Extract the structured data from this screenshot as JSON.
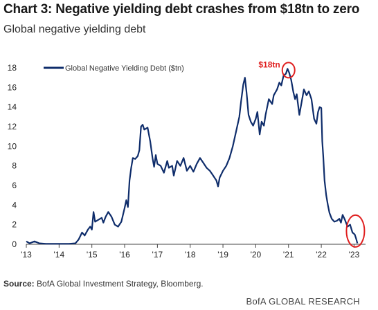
{
  "header": {
    "title": "Chart 3: Negative yielding debt crashes from $18tn to zero",
    "subtitle": "Global negative yielding debt"
  },
  "footer": {
    "source_label": "Source:",
    "source_text": " BofA Global Investment Strategy, Bloomberg.",
    "brand": "BofA GLOBAL RESEARCH"
  },
  "colors": {
    "series": "#0f2d6b",
    "highlight": "#e02020",
    "axis": "#444444"
  },
  "chart_data": {
    "type": "line",
    "title": "Chart 3: Negative yielding debt crashes from $18tn to zero",
    "subtitle": "Global negative yielding debt",
    "xlabel": "",
    "ylabel": "",
    "xlim": [
      2013,
      2023.35
    ],
    "ylim": [
      0,
      18
    ],
    "yticks": [
      0,
      2,
      4,
      6,
      8,
      10,
      12,
      14,
      16,
      18
    ],
    "xticks": [
      {
        "value": 2013,
        "label": "'13"
      },
      {
        "value": 2014,
        "label": "'14"
      },
      {
        "value": 2015,
        "label": "'15"
      },
      {
        "value": 2016,
        "label": "'16"
      },
      {
        "value": 2017,
        "label": "'17"
      },
      {
        "value": 2018,
        "label": "'18"
      },
      {
        "value": 2019,
        "label": "'19"
      },
      {
        "value": 2020,
        "label": "'20"
      },
      {
        "value": 2021,
        "label": "'21"
      },
      {
        "value": 2022,
        "label": "'22"
      },
      {
        "value": 2023,
        "label": "'23"
      }
    ],
    "grid": false,
    "legend_position": "top-left",
    "series": [
      {
        "name": "Global Negative Yielding Debt ($tn)",
        "points": [
          [
            2013.0,
            0.3
          ],
          [
            2013.1,
            0.1
          ],
          [
            2013.25,
            0.3
          ],
          [
            2013.4,
            0.1
          ],
          [
            2013.6,
            0.05
          ],
          [
            2014.0,
            0.05
          ],
          [
            2014.3,
            0.05
          ],
          [
            2014.5,
            0.1
          ],
          [
            2014.6,
            0.5
          ],
          [
            2014.7,
            1.2
          ],
          [
            2014.78,
            0.9
          ],
          [
            2014.88,
            1.5
          ],
          [
            2014.95,
            1.8
          ],
          [
            2015.0,
            1.5
          ],
          [
            2015.05,
            3.3
          ],
          [
            2015.1,
            2.3
          ],
          [
            2015.2,
            2.5
          ],
          [
            2015.3,
            2.7
          ],
          [
            2015.35,
            2.2
          ],
          [
            2015.42,
            2.8
          ],
          [
            2015.5,
            3.3
          ],
          [
            2015.6,
            2.8
          ],
          [
            2015.7,
            2.0
          ],
          [
            2015.8,
            1.8
          ],
          [
            2015.9,
            2.3
          ],
          [
            2016.0,
            3.7
          ],
          [
            2016.05,
            4.5
          ],
          [
            2016.1,
            3.8
          ],
          [
            2016.15,
            6.5
          ],
          [
            2016.2,
            7.8
          ],
          [
            2016.25,
            8.8
          ],
          [
            2016.32,
            8.7
          ],
          [
            2016.4,
            9.0
          ],
          [
            2016.45,
            9.6
          ],
          [
            2016.5,
            12.0
          ],
          [
            2016.55,
            12.2
          ],
          [
            2016.6,
            11.7
          ],
          [
            2016.7,
            11.9
          ],
          [
            2016.78,
            10.5
          ],
          [
            2016.85,
            8.8
          ],
          [
            2016.9,
            7.9
          ],
          [
            2016.95,
            9.1
          ],
          [
            2017.0,
            8.2
          ],
          [
            2017.1,
            8.0
          ],
          [
            2017.2,
            7.3
          ],
          [
            2017.3,
            8.5
          ],
          [
            2017.35,
            7.8
          ],
          [
            2017.45,
            8.0
          ],
          [
            2017.5,
            7.0
          ],
          [
            2017.6,
            8.5
          ],
          [
            2017.7,
            8.0
          ],
          [
            2017.8,
            8.8
          ],
          [
            2017.9,
            7.5
          ],
          [
            2018.0,
            8.0
          ],
          [
            2018.1,
            7.4
          ],
          [
            2018.2,
            8.2
          ],
          [
            2018.3,
            8.8
          ],
          [
            2018.4,
            8.3
          ],
          [
            2018.5,
            7.8
          ],
          [
            2018.6,
            7.5
          ],
          [
            2018.7,
            7.0
          ],
          [
            2018.8,
            6.5
          ],
          [
            2018.85,
            5.9
          ],
          [
            2018.9,
            6.8
          ],
          [
            2019.0,
            7.5
          ],
          [
            2019.1,
            8.0
          ],
          [
            2019.2,
            8.8
          ],
          [
            2019.3,
            10.0
          ],
          [
            2019.4,
            11.5
          ],
          [
            2019.5,
            13.0
          ],
          [
            2019.55,
            14.5
          ],
          [
            2019.62,
            16.3
          ],
          [
            2019.67,
            17.0
          ],
          [
            2019.72,
            15.5
          ],
          [
            2019.78,
            13.2
          ],
          [
            2019.85,
            12.5
          ],
          [
            2019.92,
            12.1
          ],
          [
            2020.0,
            12.8
          ],
          [
            2020.05,
            13.5
          ],
          [
            2020.12,
            11.2
          ],
          [
            2020.18,
            12.5
          ],
          [
            2020.25,
            12.1
          ],
          [
            2020.3,
            13.2
          ],
          [
            2020.4,
            14.8
          ],
          [
            2020.5,
            14.3
          ],
          [
            2020.55,
            15.2
          ],
          [
            2020.65,
            15.8
          ],
          [
            2020.72,
            16.5
          ],
          [
            2020.78,
            16.2
          ],
          [
            2020.85,
            17.2
          ],
          [
            2020.92,
            17.4
          ],
          [
            2020.97,
            17.9
          ],
          [
            2021.02,
            17.5
          ],
          [
            2021.08,
            16.8
          ],
          [
            2021.15,
            15.5
          ],
          [
            2021.2,
            14.8
          ],
          [
            2021.25,
            15.3
          ],
          [
            2021.33,
            13.2
          ],
          [
            2021.4,
            14.5
          ],
          [
            2021.47,
            15.8
          ],
          [
            2021.55,
            15.2
          ],
          [
            2021.62,
            15.6
          ],
          [
            2021.7,
            14.8
          ],
          [
            2021.78,
            12.8
          ],
          [
            2021.85,
            12.3
          ],
          [
            2021.9,
            13.5
          ],
          [
            2021.95,
            14.0
          ],
          [
            2022.0,
            13.9
          ],
          [
            2022.03,
            10.5
          ],
          [
            2022.06,
            9.0
          ],
          [
            2022.1,
            6.5
          ],
          [
            2022.15,
            5.0
          ],
          [
            2022.2,
            4.0
          ],
          [
            2022.25,
            3.2
          ],
          [
            2022.32,
            2.6
          ],
          [
            2022.4,
            2.3
          ],
          [
            2022.48,
            2.4
          ],
          [
            2022.55,
            2.6
          ],
          [
            2022.6,
            2.2
          ],
          [
            2022.65,
            3.0
          ],
          [
            2022.72,
            2.5
          ],
          [
            2022.8,
            1.8
          ],
          [
            2022.88,
            2.0
          ],
          [
            2022.95,
            1.2
          ],
          [
            2023.02,
            1.0
          ],
          [
            2023.06,
            0.6
          ],
          [
            2023.1,
            0.1
          ]
        ]
      }
    ],
    "annotations": [
      {
        "text": "$18tn",
        "x": 2021.0,
        "y": 17.9,
        "color": "#e02020"
      }
    ],
    "highlights": [
      {
        "x": 2021.0,
        "y": 17.9,
        "shape": "circle",
        "color": "#e02020"
      },
      {
        "x": 2023.0,
        "y": 1.0,
        "shape": "circle",
        "color": "#e02020"
      }
    ]
  }
}
